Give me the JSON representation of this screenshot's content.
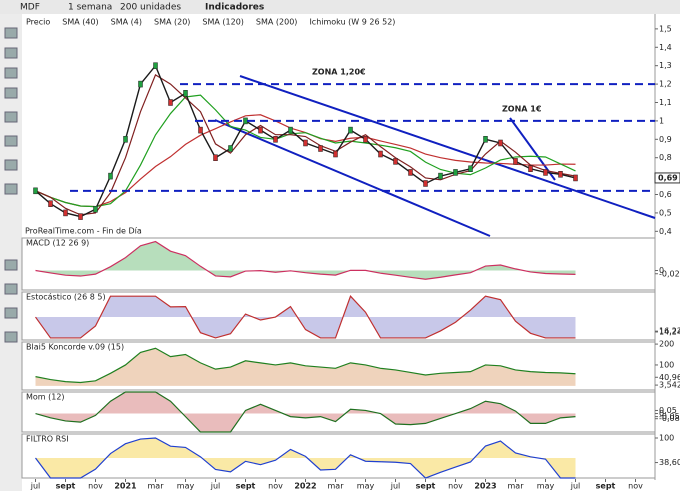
{
  "toolbar": {
    "symbol": "MDF",
    "period": "1 semana",
    "units": "200 unidades",
    "indicators": "Indicadores"
  },
  "chart_data": {
    "type": "line",
    "legend": [
      "Precio",
      "SMA (40)",
      "SMA (4)",
      "SMA (20)",
      "SMA (120)",
      "SMA (200)",
      "Ichimoku (W 9 26 52)"
    ],
    "watermark": "ProRealTime.com - Fin de Día",
    "x": [
      0,
      1,
      2,
      3,
      4,
      5,
      6,
      7,
      8,
      9,
      10,
      11,
      12,
      13,
      14,
      15,
      16,
      17,
      18,
      19,
      20,
      21,
      22,
      23,
      24,
      25,
      26,
      27,
      28,
      29,
      30,
      31,
      32,
      33,
      34,
      35,
      36
    ],
    "series": [
      {
        "name": "Precio",
        "color": "#1a1a1a",
        "values": [
          0.62,
          0.55,
          0.5,
          0.48,
          0.52,
          0.7,
          0.9,
          1.2,
          1.3,
          1.1,
          1.15,
          0.95,
          0.8,
          0.85,
          1.0,
          0.95,
          0.9,
          0.95,
          0.88,
          0.85,
          0.82,
          0.95,
          0.9,
          0.82,
          0.78,
          0.72,
          0.66,
          0.7,
          0.72,
          0.74,
          0.9,
          0.88,
          0.78,
          0.74,
          0.72,
          0.71,
          0.69
        ]
      }
    ],
    "xlim": [
      -0.9,
      41.3
    ],
    "xticks": [
      {
        "value": 0,
        "label": "jul"
      },
      {
        "value": 2,
        "label": "sept"
      },
      {
        "value": 4,
        "label": "nov"
      },
      {
        "value": 6,
        "label": "2021"
      },
      {
        "value": 8,
        "label": "mar"
      },
      {
        "value": 10,
        "label": "may"
      },
      {
        "value": 12,
        "label": "jul"
      },
      {
        "value": 14,
        "label": "sept"
      },
      {
        "value": 16,
        "label": "nov"
      },
      {
        "value": 18,
        "label": "2022"
      },
      {
        "value": 20,
        "label": "mar"
      },
      {
        "value": 22,
        "label": "may"
      },
      {
        "value": 24,
        "label": "jul"
      },
      {
        "value": 26,
        "label": "sept"
      },
      {
        "value": 28,
        "label": "nov"
      },
      {
        "value": 30,
        "label": "2023"
      },
      {
        "value": 32,
        "label": "mar"
      },
      {
        "value": 34,
        "label": "may"
      },
      {
        "value": 36,
        "label": "jul"
      },
      {
        "value": 38,
        "label": "sept"
      },
      {
        "value": 40,
        "label": "nov"
      }
    ],
    "ylim": [
      0.38,
      1.57
    ],
    "yticks": [
      {
        "value": 1.5,
        "label": "1,5"
      },
      {
        "value": 1.4,
        "label": "1,4"
      },
      {
        "value": 1.3,
        "label": "1,3"
      },
      {
        "value": 1.2,
        "label": "1,2"
      },
      {
        "value": 1.1,
        "label": "1,1"
      },
      {
        "value": 1,
        "label": "1"
      },
      {
        "value": 0.9,
        "label": "0,9"
      },
      {
        "value": 0.8,
        "label": "0,8"
      },
      {
        "value": 0.7,
        "label": "0,7"
      },
      {
        "value": 0.6,
        "label": "0,6"
      },
      {
        "value": 0.5,
        "label": "0,5"
      },
      {
        "value": 0.4,
        "label": "0,4"
      }
    ],
    "last_price": {
      "value": 0.69,
      "label": "0,69"
    },
    "levels": [
      {
        "value": 1.2,
        "label": "ZONA 1,20€"
      },
      {
        "value": 1.0,
        "label": "ZONA 1€"
      },
      {
        "value": 0.62
      }
    ],
    "panels": [
      {
        "title": "MACD (12 26 9)",
        "ylim": [
          -0.12,
          0.2
        ],
        "yticks": [
          0,
          {
            "value": -0.02,
            "label": "-0,020"
          }
        ]
      },
      {
        "title": "Estocástico (26 8 5)",
        "ylim": [
          -5,
          110
        ],
        "yticks": [
          {
            "value": 16.22,
            "label": "16,22"
          },
          {
            "value": 14.24,
            "label": "14,24"
          }
        ]
      },
      {
        "title": "Blai5 Koncorde v.09 (15)",
        "ylim": [
          -20,
          210
        ],
        "yticks": [
          200,
          100,
          {
            "value": 40.96,
            "label": "40,96"
          },
          {
            "value": 3.542,
            "label": "3,542"
          }
        ]
      },
      {
        "title": "Mom (12)",
        "ylim": [
          -0.3,
          0.35
        ],
        "yticks": [
          {
            "value": 0.05,
            "label": "0,05"
          },
          0,
          {
            "value": -0.05,
            "label": "-0,05"
          },
          {
            "value": -0.084,
            "label": "-0,084"
          }
        ]
      },
      {
        "title": "FILTRO RSI",
        "ylim": [
          0,
          110
        ],
        "yticks": [
          100,
          {
            "value": 38.604,
            "label": "38,604"
          }
        ]
      }
    ]
  }
}
